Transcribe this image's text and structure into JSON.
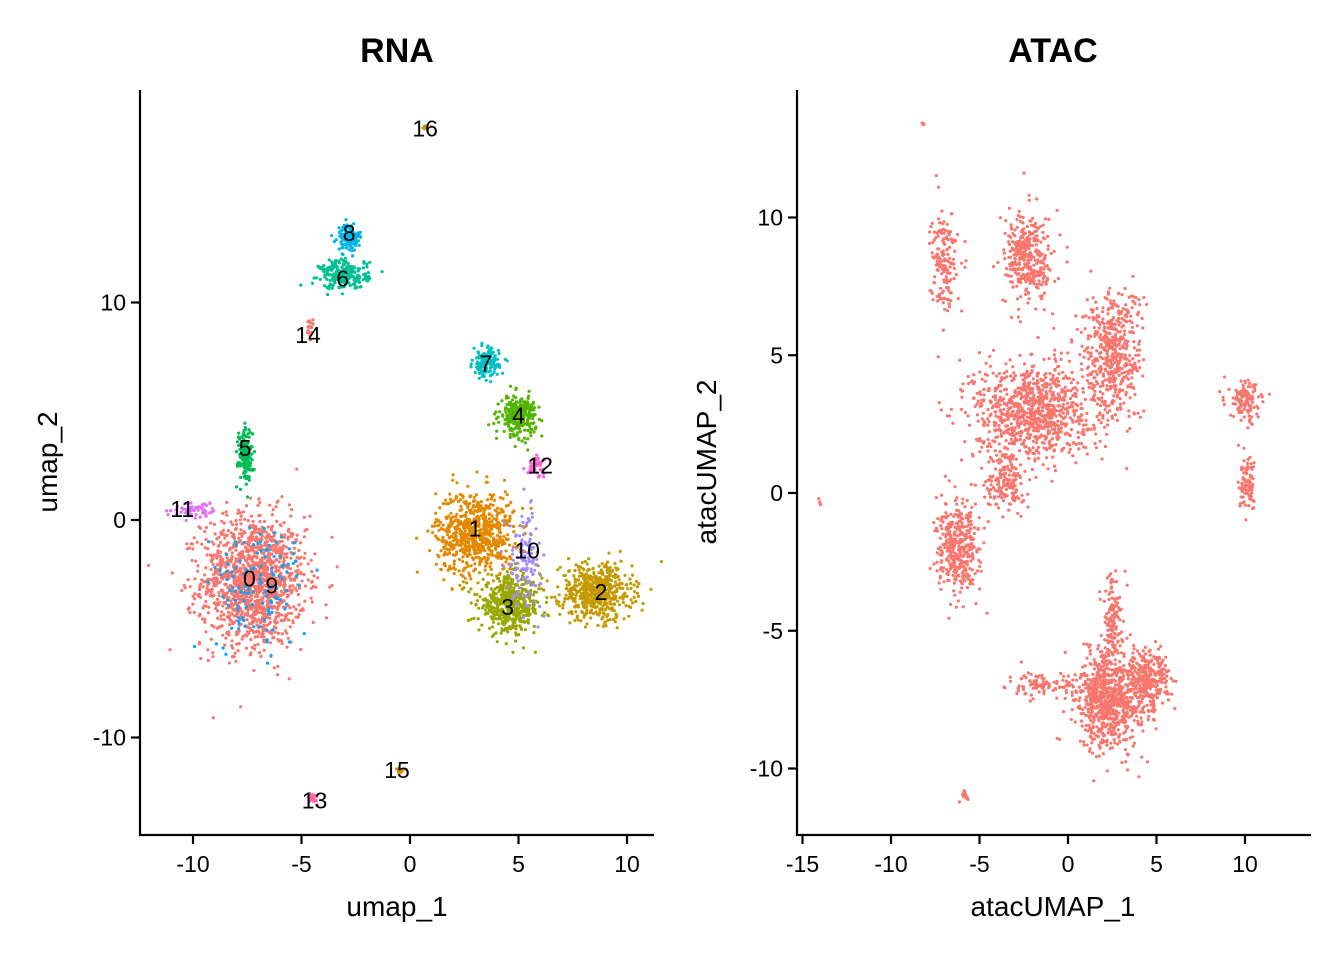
{
  "chart_data": [
    {
      "type": "scatter",
      "title": "RNA",
      "xlabel": "umap_1",
      "ylabel": "umap_2",
      "xlim": [
        -12.5,
        11.5
      ],
      "ylim": [
        -14.5,
        19.5
      ],
      "xticks": [
        -10,
        -5,
        0,
        5,
        10
      ],
      "yticks": [
        -10,
        0,
        10
      ],
      "xtick_labels": [
        "-10",
        "-5",
        "0",
        "5",
        "10"
      ],
      "ytick_labels": [
        "-10",
        "0",
        "10"
      ],
      "grid": false,
      "legend": "none",
      "clusters": [
        {
          "label": "0",
          "color": "#F8766D",
          "center": [
            -7.2,
            -2.8
          ],
          "spread": [
            1.6,
            2.0
          ],
          "n": 1400,
          "label_pos": [
            -7.4,
            -2.7
          ]
        },
        {
          "label": "1",
          "color": "#E38900",
          "center": [
            3.0,
            -0.6
          ],
          "spread": [
            1.2,
            1.3
          ],
          "n": 700,
          "label_pos": [
            3.0,
            -0.4
          ]
        },
        {
          "label": "2",
          "color": "#C49A00",
          "center": [
            8.6,
            -3.3
          ],
          "spread": [
            1.1,
            0.85
          ],
          "n": 550,
          "label_pos": [
            8.8,
            -3.3
          ]
        },
        {
          "label": "3",
          "color": "#99A800",
          "center": [
            4.6,
            -3.9
          ],
          "spread": [
            0.95,
            0.85
          ],
          "n": 500,
          "label_pos": [
            4.5,
            -4.0
          ]
        },
        {
          "label": "4",
          "color": "#53B400",
          "center": [
            5.0,
            4.8
          ],
          "spread": [
            0.55,
            0.6
          ],
          "n": 260,
          "label_pos": [
            5.0,
            4.8
          ]
        },
        {
          "label": "5",
          "color": "#00BC56",
          "center": [
            -7.6,
            3.0
          ],
          "spread": [
            0.22,
            0.8
          ],
          "n": 180,
          "label_pos": [
            -7.6,
            3.3
          ]
        },
        {
          "label": "6",
          "color": "#00C094",
          "center": [
            -3.0,
            11.3
          ],
          "spread": [
            0.75,
            0.45
          ],
          "n": 220,
          "label_pos": [
            -3.1,
            11.1
          ]
        },
        {
          "label": "7",
          "color": "#00BFC4",
          "center": [
            3.5,
            7.2
          ],
          "spread": [
            0.4,
            0.45
          ],
          "n": 140,
          "label_pos": [
            3.5,
            7.2
          ]
        },
        {
          "label": "8",
          "color": "#00B6EB",
          "center": [
            -2.8,
            13.0
          ],
          "spread": [
            0.35,
            0.4
          ],
          "n": 150,
          "label_pos": [
            -2.8,
            13.2
          ]
        },
        {
          "label": "9",
          "color": "#06A4FF",
          "center": [
            -7.0,
            -3.0
          ],
          "spread": [
            1.5,
            1.9
          ],
          "n": 120,
          "label_pos": [
            -7.2,
            -3.0
          ]
        },
        {
          "label": "10",
          "color": "#A58AFF",
          "center": [
            5.3,
            -1.8
          ],
          "spread": [
            0.5,
            1.4
          ],
          "n": 120,
          "label_pos": [
            5.4,
            -1.4
          ]
        },
        {
          "label": "11",
          "color": "#DF70F8",
          "center": [
            -9.8,
            0.5
          ],
          "spread": [
            0.8,
            0.25
          ],
          "n": 60,
          "label_pos": [
            -10.5,
            0.5
          ]
        },
        {
          "label": "12",
          "color": "#FB61D7",
          "center": [
            5.8,
            2.5
          ],
          "spread": [
            0.25,
            0.25
          ],
          "n": 50,
          "label_pos": [
            6.0,
            2.5
          ]
        },
        {
          "label": "13",
          "color": "#FF66A8",
          "center": [
            -4.5,
            -12.8
          ],
          "spread": [
            0.15,
            0.15
          ],
          "n": 25,
          "label_pos": [
            -4.4,
            -12.9
          ]
        },
        {
          "label": "14",
          "color": "#F8766D",
          "center": [
            -4.6,
            8.8
          ],
          "spread": [
            0.15,
            0.25
          ],
          "n": 20,
          "label_pos": [
            -4.7,
            8.5
          ]
        },
        {
          "label": "15",
          "color": "#E38900",
          "center": [
            -0.5,
            -11.5
          ],
          "spread": [
            0.12,
            0.1
          ],
          "n": 12,
          "label_pos": [
            -0.6,
            -11.5
          ]
        },
        {
          "label": "16",
          "color": "#C49A00",
          "center": [
            0.8,
            18.0
          ],
          "spread": [
            0.1,
            0.1
          ],
          "n": 8,
          "label_pos": [
            0.7,
            18.0
          ]
        }
      ]
    },
    {
      "type": "scatter",
      "title": "ATAC",
      "xlabel": "atacUMAP_1",
      "ylabel": "atacUMAP_2",
      "xlim": [
        -15.5,
        13
      ],
      "ylim": [
        -12.5,
        14.5
      ],
      "xticks": [
        -15,
        -10,
        -5,
        0,
        5,
        10
      ],
      "yticks": [
        -10,
        -5,
        0,
        5,
        10
      ],
      "xtick_labels": [
        "-15",
        "-10",
        "-5",
        "0",
        "5",
        "10"
      ],
      "ytick_labels": [
        "-10",
        "-5",
        "0",
        "5",
        "10"
      ],
      "grid": false,
      "legend": "none",
      "color": "#F8766D",
      "blobs": [
        {
          "center": [
            -2.0,
            3.0
          ],
          "spread": [
            2.2,
            1.2
          ],
          "n": 900
        },
        {
          "center": [
            2.5,
            5.0
          ],
          "spread": [
            1.1,
            1.6
          ],
          "n": 500
        },
        {
          "center": [
            -2.2,
            8.5
          ],
          "spread": [
            0.9,
            1.1
          ],
          "n": 350
        },
        {
          "center": [
            -7.0,
            8.5
          ],
          "spread": [
            0.5,
            1.2
          ],
          "n": 160
        },
        {
          "center": [
            -6.2,
            -2.0
          ],
          "spread": [
            0.8,
            1.1
          ],
          "n": 380
        },
        {
          "center": [
            -3.5,
            0.5
          ],
          "spread": [
            0.7,
            0.8
          ],
          "n": 160
        },
        {
          "center": [
            2.3,
            -7.5
          ],
          "spread": [
            1.2,
            1.2
          ],
          "n": 750
        },
        {
          "center": [
            4.5,
            -6.8
          ],
          "spread": [
            0.8,
            0.8
          ],
          "n": 300
        },
        {
          "center": [
            2.5,
            -4.5
          ],
          "spread": [
            0.35,
            0.9
          ],
          "n": 120
        },
        {
          "center": [
            -1.5,
            -7.0
          ],
          "spread": [
            1.3,
            0.3
          ],
          "n": 90
        },
        {
          "center": [
            10.0,
            3.3
          ],
          "spread": [
            0.6,
            0.5
          ],
          "n": 120
        },
        {
          "center": [
            10.2,
            0.3
          ],
          "spread": [
            0.35,
            0.6
          ],
          "n": 90
        },
        {
          "center": [
            -5.8,
            -11.0
          ],
          "spread": [
            0.15,
            0.15
          ],
          "n": 15
        },
        {
          "center": [
            -8.2,
            13.4
          ],
          "spread": [
            0.05,
            0.05
          ],
          "n": 4
        },
        {
          "center": [
            -14.0,
            -0.3
          ],
          "spread": [
            0.05,
            0.1
          ],
          "n": 4
        }
      ]
    }
  ]
}
